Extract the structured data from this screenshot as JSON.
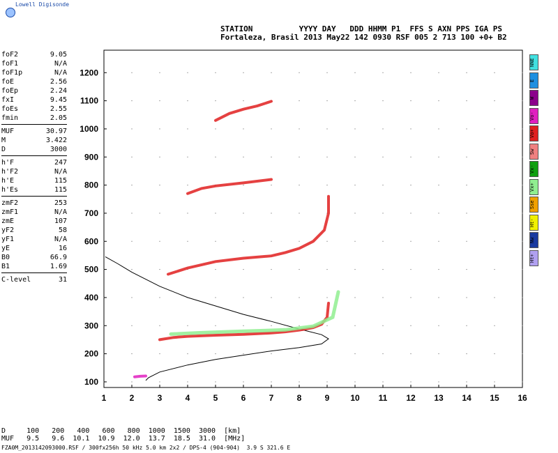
{
  "header": {
    "logo_text": "Lowell Digisonde",
    "station_line1": "STATION          YYYY DAY   DDD HHMM P1  FFS S AXN PPS IGA PS",
    "station_line2": "Fortaleza, Brasil 2013 May22 142 0930 RSF 005 2 713 100 +0+ B2"
  },
  "params": [
    {
      "label": "foF2",
      "value": "9.05"
    },
    {
      "label": "foF1",
      "value": "N/A"
    },
    {
      "label": "foF1p",
      "value": "N/A"
    },
    {
      "label": "foE",
      "value": "2.56"
    },
    {
      "label": "foEp",
      "value": "2.24"
    },
    {
      "label": "fxI",
      "value": "9.45"
    },
    {
      "label": "foEs",
      "value": "2.55"
    },
    {
      "label": "fmin",
      "value": "2.05"
    },
    {
      "label": "MUF",
      "value": "30.97"
    },
    {
      "label": "M",
      "value": "3.422"
    },
    {
      "label": "D",
      "value": "3000"
    },
    {
      "label": "h'F",
      "value": "247"
    },
    {
      "label": "h'F2",
      "value": "N/A"
    },
    {
      "label": "h'E",
      "value": "115"
    },
    {
      "label": "h'Es",
      "value": "115"
    },
    {
      "label": "zmF2",
      "value": "253"
    },
    {
      "label": "zmF1",
      "value": "N/A"
    },
    {
      "label": "zmE",
      "value": "107"
    },
    {
      "label": "yF2",
      "value": "58"
    },
    {
      "label": "yF1",
      "value": "N/A"
    },
    {
      "label": "yE",
      "value": "16"
    },
    {
      "label": "B0",
      "value": "66.9"
    },
    {
      "label": "B1",
      "value": "1.69"
    },
    {
      "label": "C-level",
      "value": "31"
    }
  ],
  "legend": [
    {
      "label": "NNE",
      "color": "#40e0e0"
    },
    {
      "label": "E",
      "color": "#1e8fe0"
    },
    {
      "label": "W",
      "color": "#8b008b"
    },
    {
      "label": "Vo-",
      "color": "#e020c0"
    },
    {
      "label": "Vo+",
      "color": "#e02020"
    },
    {
      "label": "Sw",
      "color": "#f08080"
    },
    {
      "label": "Vx-",
      "color": "#10a010"
    },
    {
      "label": "Vx+",
      "color": "#90ee90"
    },
    {
      "label": "Sse",
      "color": "#f0a000"
    },
    {
      "label": "Ht-",
      "color": "#f0f000"
    },
    {
      "label": "Nw",
      "color": "#1a3aa0"
    },
    {
      "label": "Ht+",
      "color": "#b0a0f0"
    }
  ],
  "muf_table": {
    "line1": "D     100   200   400   600   800  1000  1500  3000  [km]",
    "line2": "MUF   9.5   9.6  10.1  10.9  12.0  13.7  18.5  31.0  [MHz]"
  },
  "footer": "FZA0M_2013142093000.RSF / 300fx256h 50 kHz 5.0 km 2x2 / DPS-4 (904-904)  3.9 S 321.6 E",
  "chart_data": {
    "type": "scatter",
    "xlabel": "",
    "ylabel": "",
    "xlim": [
      1,
      16
    ],
    "ylim": [
      80,
      1280
    ],
    "xticks": [
      1,
      2,
      3,
      4,
      5,
      6,
      7,
      8,
      9,
      10,
      11,
      12,
      13,
      14,
      15,
      16
    ],
    "yticks": [
      100,
      200,
      300,
      400,
      500,
      600,
      700,
      800,
      900,
      1000,
      1100,
      1200
    ],
    "grid": true,
    "traces": [
      {
        "name": "F-trace 1st hop",
        "color": "#e02020",
        "points": [
          [
            3,
            250
          ],
          [
            3.5,
            258
          ],
          [
            4,
            262
          ],
          [
            5,
            266
          ],
          [
            6,
            269
          ],
          [
            7,
            274
          ],
          [
            7.5,
            278
          ],
          [
            8,
            284
          ],
          [
            8.5,
            293
          ],
          [
            8.8,
            305
          ],
          [
            9,
            330
          ],
          [
            9.05,
            380
          ]
        ]
      },
      {
        "name": "F-trace 2nd hop",
        "color": "#e02020",
        "points": [
          [
            3.3,
            483
          ],
          [
            4,
            505
          ],
          [
            5,
            528
          ],
          [
            6,
            540
          ],
          [
            7,
            548
          ],
          [
            7.5,
            560
          ],
          [
            8,
            575
          ],
          [
            8.5,
            600
          ],
          [
            8.9,
            640
          ],
          [
            9.05,
            700
          ],
          [
            9.05,
            760
          ]
        ]
      },
      {
        "name": "F-trace 3rd hop",
        "color": "#e02020",
        "points": [
          [
            4,
            770
          ],
          [
            4.5,
            788
          ],
          [
            5,
            797
          ],
          [
            6,
            808
          ],
          [
            7,
            820
          ]
        ]
      },
      {
        "name": "F-trace 4th hop",
        "color": "#e02020",
        "points": [
          [
            5,
            1030
          ],
          [
            5.5,
            1055
          ],
          [
            6,
            1070
          ],
          [
            6.5,
            1082
          ],
          [
            7,
            1098
          ]
        ]
      },
      {
        "name": "E-trace",
        "color": "#e020c0",
        "points": [
          [
            2.1,
            118
          ],
          [
            2.3,
            120
          ],
          [
            2.5,
            121
          ]
        ]
      },
      {
        "name": "X-trace",
        "color": "#90ee90",
        "points": [
          [
            3.4,
            270
          ],
          [
            4.5,
            275
          ],
          [
            6,
            280
          ],
          [
            7.5,
            285
          ],
          [
            8.5,
            298
          ],
          [
            9.2,
            330
          ],
          [
            9.4,
            420
          ]
        ]
      }
    ],
    "profile": {
      "name": "N(h) profile",
      "color": "#000000",
      "points": [
        [
          2.5,
          105
        ],
        [
          2.6,
          115
        ],
        [
          3,
          135
        ],
        [
          4,
          160
        ],
        [
          5,
          180
        ],
        [
          6,
          195
        ],
        [
          7,
          210
        ],
        [
          8,
          222
        ],
        [
          8.8,
          235
        ],
        [
          9.05,
          253
        ],
        [
          8.8,
          268
        ],
        [
          8,
          288
        ],
        [
          7,
          315
        ],
        [
          6,
          340
        ],
        [
          5,
          370
        ],
        [
          4,
          400
        ],
        [
          3,
          440
        ],
        [
          2,
          490
        ],
        [
          1.5,
          520
        ],
        [
          1.05,
          545
        ]
      ]
    }
  }
}
